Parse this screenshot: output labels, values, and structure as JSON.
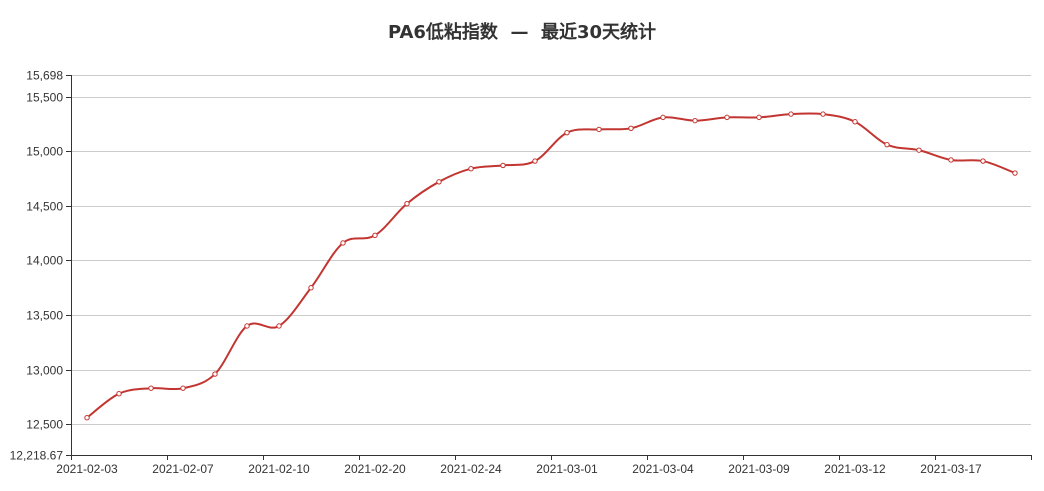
{
  "chart_data": {
    "type": "line",
    "title": "PA6低粘指数  —  最近30天统计",
    "xlabel": "",
    "ylabel": "",
    "ylim": [
      12218.67,
      15698
    ],
    "y_ticks": [
      "12,218.67",
      "12,500",
      "13,000",
      "13,500",
      "14,000",
      "14,500",
      "15,000",
      "15,500",
      "15,698"
    ],
    "y_tick_values": [
      12218.67,
      12500,
      13000,
      13500,
      14000,
      14500,
      15000,
      15500,
      15698
    ],
    "x_tick_labels": [
      "2021-02-03",
      "2021-02-07",
      "2021-02-10",
      "2021-02-20",
      "2021-02-24",
      "2021-03-01",
      "2021-03-04",
      "2021-03-09",
      "2021-03-12",
      "2021-03-17"
    ],
    "grid": true,
    "smooth": true,
    "line_color": "#c23531",
    "series": [
      {
        "values": [
          12560,
          12780,
          12830,
          12830,
          12960,
          13400,
          13400,
          13750,
          14160,
          14230,
          14520,
          14720,
          14840,
          14870,
          14910,
          15170,
          15200,
          15210,
          15310,
          15280,
          15310,
          15310,
          15340,
          15340,
          15270,
          15060,
          15010,
          14920,
          14910,
          14800
        ]
      }
    ]
  }
}
